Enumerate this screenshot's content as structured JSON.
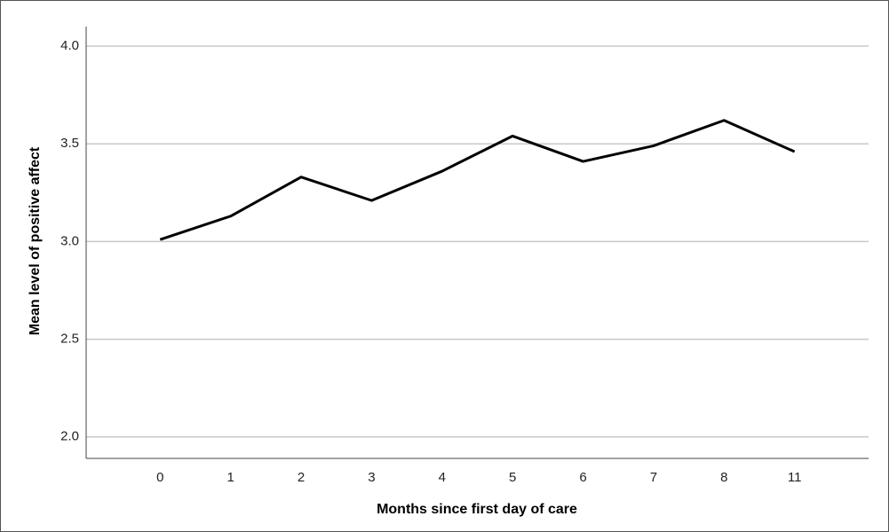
{
  "chart_data": {
    "type": "line",
    "xlabel": "Months since first day of care",
    "ylabel": "Mean level of positive affect",
    "categories": [
      "0",
      "1",
      "2",
      "3",
      "4",
      "5",
      "6",
      "7",
      "8",
      "11"
    ],
    "series": [
      {
        "name": "Mean level of positive affect",
        "color": "#000000",
        "values": [
          3.01,
          3.13,
          3.33,
          3.21,
          3.36,
          3.54,
          3.41,
          3.49,
          3.62,
          3.46
        ]
      }
    ],
    "ylim": [
      1.89,
      4.1
    ],
    "yticks": [
      {
        "value": 2.0,
        "label": "2.0"
      },
      {
        "value": 2.5,
        "label": "2.5"
      },
      {
        "value": 3.0,
        "label": "3.0"
      },
      {
        "value": 3.5,
        "label": "3.5"
      },
      {
        "value": 4.0,
        "label": "4.0"
      }
    ],
    "grid": true
  }
}
